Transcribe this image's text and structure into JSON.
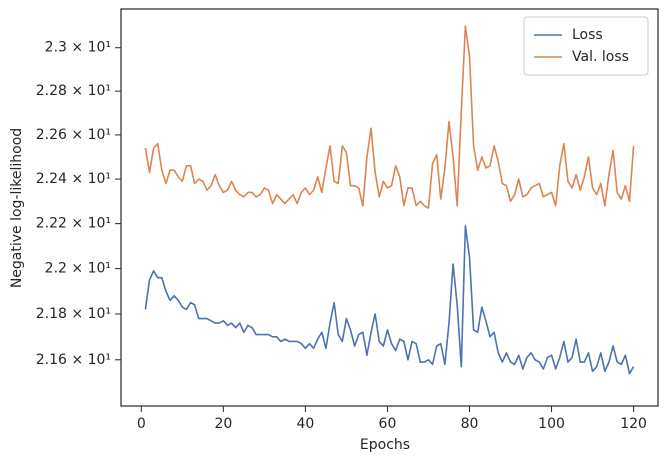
{
  "chart_data": {
    "type": "line",
    "xlabel": "Epochs",
    "ylabel": "Negative log-likelihood",
    "yscale": "log",
    "legend": "upper right",
    "grid": false,
    "x": [
      1,
      2,
      3,
      4,
      5,
      6,
      7,
      8,
      9,
      10,
      11,
      12,
      13,
      14,
      15,
      16,
      17,
      18,
      19,
      20,
      21,
      22,
      23,
      24,
      25,
      26,
      27,
      28,
      29,
      30,
      31,
      32,
      33,
      34,
      35,
      36,
      37,
      38,
      39,
      40,
      41,
      42,
      43,
      44,
      45,
      46,
      47,
      48,
      49,
      50,
      51,
      52,
      53,
      54,
      55,
      56,
      57,
      58,
      59,
      60,
      61,
      62,
      63,
      64,
      65,
      66,
      67,
      68,
      69,
      70,
      71,
      72,
      73,
      74,
      75,
      76,
      77,
      78,
      79,
      80,
      81,
      82,
      83,
      84,
      85,
      86,
      87,
      88,
      89,
      90,
      91,
      92,
      93,
      94,
      95,
      96,
      97,
      98,
      99,
      100,
      101,
      102,
      103,
      104,
      105,
      106,
      107,
      108,
      109,
      110,
      111,
      112,
      113,
      114,
      115,
      116,
      117,
      118,
      119,
      120
    ],
    "series": [
      {
        "name": "Loss",
        "color": "#4c72b0",
        "values": [
          21.82,
          21.95,
          21.99,
          21.96,
          21.96,
          21.9,
          21.86,
          21.88,
          21.86,
          21.83,
          21.82,
          21.85,
          21.84,
          21.78,
          21.78,
          21.78,
          21.77,
          21.76,
          21.76,
          21.77,
          21.75,
          21.76,
          21.74,
          21.76,
          21.72,
          21.75,
          21.74,
          21.71,
          21.71,
          21.71,
          21.71,
          21.7,
          21.7,
          21.68,
          21.69,
          21.68,
          21.68,
          21.68,
          21.67,
          21.65,
          21.67,
          21.65,
          21.69,
          21.72,
          21.65,
          21.76,
          21.85,
          21.71,
          21.68,
          21.78,
          21.73,
          21.66,
          21.71,
          21.72,
          21.62,
          21.72,
          21.8,
          21.68,
          21.66,
          21.73,
          21.67,
          21.64,
          21.69,
          21.68,
          21.6,
          21.68,
          21.67,
          21.59,
          21.59,
          21.6,
          21.58,
          21.66,
          21.67,
          21.58,
          21.76,
          22.02,
          21.84,
          21.57,
          22.19,
          22.05,
          21.73,
          21.72,
          21.83,
          21.77,
          21.7,
          21.72,
          21.63,
          21.59,
          21.63,
          21.59,
          21.58,
          21.62,
          21.56,
          21.61,
          21.63,
          21.6,
          21.59,
          21.56,
          21.61,
          21.62,
          21.56,
          21.61,
          21.68,
          21.59,
          21.61,
          21.69,
          21.59,
          21.59,
          21.63,
          21.55,
          21.57,
          21.63,
          21.55,
          21.59,
          21.66,
          21.59,
          21.58,
          21.62,
          21.54,
          21.57
        ]
      },
      {
        "name": "Val. loss",
        "color": "#dd8452",
        "values": [
          22.54,
          22.43,
          22.54,
          22.56,
          22.44,
          22.38,
          22.44,
          22.44,
          22.41,
          22.39,
          22.46,
          22.46,
          22.38,
          22.4,
          22.39,
          22.35,
          22.37,
          22.42,
          22.37,
          22.34,
          22.35,
          22.39,
          22.35,
          22.33,
          22.32,
          22.34,
          22.34,
          22.32,
          22.33,
          22.36,
          22.35,
          22.29,
          22.33,
          22.31,
          22.29,
          22.31,
          22.33,
          22.29,
          22.34,
          22.36,
          22.33,
          22.35,
          22.41,
          22.34,
          22.45,
          22.55,
          22.39,
          22.38,
          22.55,
          22.52,
          22.37,
          22.37,
          22.36,
          22.28,
          22.5,
          22.63,
          22.43,
          22.32,
          22.39,
          22.36,
          22.37,
          22.46,
          22.41,
          22.28,
          22.36,
          22.36,
          22.28,
          22.3,
          22.28,
          22.27,
          22.47,
          22.51,
          22.31,
          22.45,
          22.66,
          22.5,
          22.28,
          22.71,
          23.1,
          22.96,
          22.55,
          22.44,
          22.5,
          22.45,
          22.46,
          22.55,
          22.48,
          22.38,
          22.37,
          22.3,
          22.33,
          22.4,
          22.32,
          22.33,
          22.36,
          22.37,
          22.38,
          22.32,
          22.33,
          22.34,
          22.28,
          22.46,
          22.56,
          22.39,
          22.36,
          22.42,
          22.35,
          22.41,
          22.5,
          22.36,
          22.33,
          22.38,
          22.28,
          22.42,
          22.53,
          22.34,
          22.31,
          22.37,
          22.3,
          22.55
        ]
      }
    ],
    "xlim": [
      -4.95,
      125.95
    ],
    "xticks": [
      0,
      20,
      40,
      60,
      80,
      100,
      120
    ],
    "ylim": [
      21.4,
      23.18
    ],
    "yticks": [
      {
        "value": 21.6,
        "label": "2.16 × 10¹"
      },
      {
        "value": 21.8,
        "label": "2.18 × 10¹"
      },
      {
        "value": 22,
        "label": "2.2 × 10¹"
      },
      {
        "value": 22.2,
        "label": "2.22 × 10¹"
      },
      {
        "value": 22.4,
        "label": "2.24 × 10¹"
      },
      {
        "value": 22.6,
        "label": "2.26 × 10¹"
      },
      {
        "value": 22.8,
        "label": "2.28 × 10¹"
      },
      {
        "value": 23,
        "label": "2.3 × 10¹"
      }
    ]
  }
}
